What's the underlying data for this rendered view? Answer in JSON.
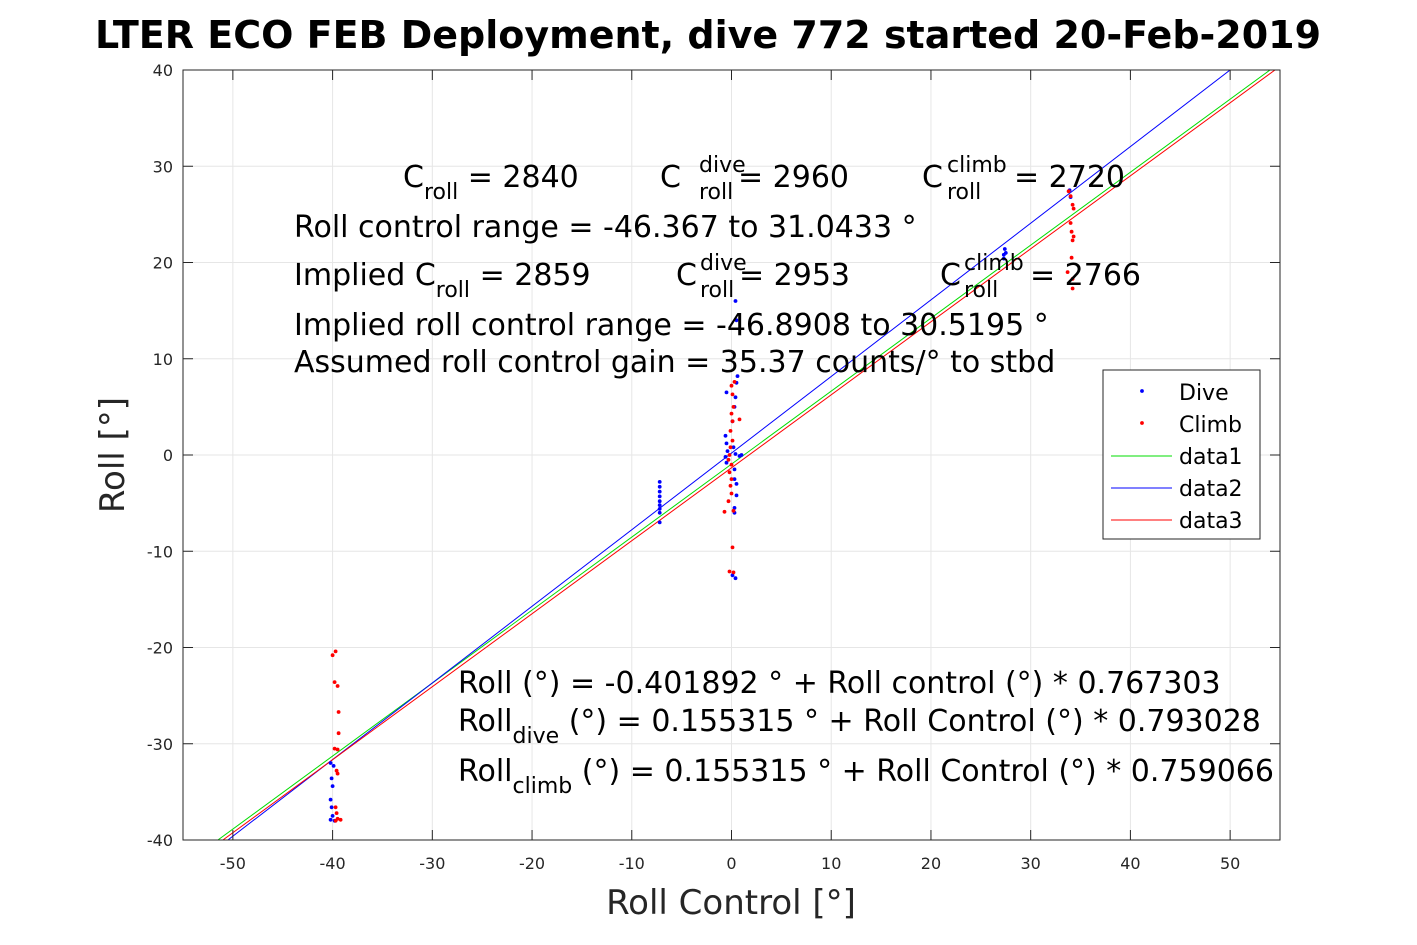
{
  "chart_data": {
    "type": "scatter",
    "title": "LTER ECO FEB Deployment, dive 772 started 20-Feb-2019",
    "xlabel": "Roll Control [°]",
    "ylabel": "Roll [°]",
    "xlim": [
      -55,
      55
    ],
    "ylim": [
      -40,
      40
    ],
    "xticks": [
      -50,
      -40,
      -30,
      -20,
      -10,
      0,
      10,
      20,
      30,
      40,
      50
    ],
    "yticks": [
      -40,
      -30,
      -20,
      -10,
      0,
      10,
      20,
      30,
      40
    ],
    "grid": true,
    "legend_placement": "east",
    "series": [
      {
        "name": "Dive",
        "kind": "points",
        "color": "#0000ff",
        "points": [
          [
            -40.2,
            -32.0
          ],
          [
            -40.1,
            -33.6
          ],
          [
            -40.0,
            -34.4
          ],
          [
            -40.2,
            -35.8
          ],
          [
            -40.1,
            -36.6
          ],
          [
            -40.0,
            -37.5
          ],
          [
            -40.2,
            -37.9
          ],
          [
            -39.8,
            -38.0
          ],
          [
            -39.9,
            -32.3
          ],
          [
            -7.2,
            -2.8
          ],
          [
            -7.2,
            -3.3
          ],
          [
            -7.2,
            -3.8
          ],
          [
            -7.2,
            -4.3
          ],
          [
            -7.2,
            -4.8
          ],
          [
            -7.2,
            -5.2
          ],
          [
            -7.2,
            -5.6
          ],
          [
            -7.2,
            -6.0
          ],
          [
            -7.2,
            -7.0
          ],
          [
            0.4,
            16.0
          ],
          [
            0.5,
            14.0
          ],
          [
            0.6,
            8.2
          ],
          [
            0.5,
            7.5
          ],
          [
            0.4,
            6.0
          ],
          [
            0.3,
            5.0
          ],
          [
            0.1,
            3.5
          ],
          [
            -0.5,
            6.5
          ],
          [
            -0.6,
            2.0
          ],
          [
            -0.5,
            1.2
          ],
          [
            -0.4,
            0.4
          ],
          [
            -0.6,
            -0.2
          ],
          [
            -0.5,
            -0.8
          ],
          [
            0.2,
            0.8
          ],
          [
            0.4,
            0.1
          ],
          [
            0.8,
            -0.1
          ],
          [
            1.0,
            0.0
          ],
          [
            0.3,
            -1.5
          ],
          [
            0.3,
            -2.5
          ],
          [
            0.5,
            -3.0
          ],
          [
            0.5,
            -4.2
          ],
          [
            0.3,
            -5.5
          ],
          [
            0.3,
            -6.0
          ],
          [
            0.4,
            -12.8
          ],
          [
            0.1,
            -12.5
          ],
          [
            27.3,
            20.4
          ],
          [
            27.5,
            21.0
          ],
          [
            27.4,
            21.4
          ],
          [
            27.3,
            20.8
          ],
          [
            33.9,
            27.5
          ],
          [
            34.0,
            26.8
          ]
        ]
      },
      {
        "name": "Climb",
        "kind": "points",
        "color": "#ff0000",
        "points": [
          [
            -39.7,
            -20.4
          ],
          [
            -40.0,
            -20.8
          ],
          [
            -39.8,
            -23.6
          ],
          [
            -39.5,
            -24.0
          ],
          [
            -39.4,
            -26.7
          ],
          [
            -39.4,
            -28.9
          ],
          [
            -39.8,
            -30.5
          ],
          [
            -39.5,
            -30.6
          ],
          [
            -39.6,
            -32.8
          ],
          [
            -39.5,
            -33.1
          ],
          [
            -39.7,
            -36.6
          ],
          [
            -39.6,
            -37.2
          ],
          [
            -39.5,
            -37.8
          ],
          [
            -39.2,
            -37.9
          ],
          [
            -39.7,
            -38.0
          ],
          [
            0.0,
            7.2
          ],
          [
            0.3,
            7.6
          ],
          [
            0.1,
            6.3
          ],
          [
            0.2,
            5.0
          ],
          [
            0.0,
            4.3
          ],
          [
            0.1,
            3.5
          ],
          [
            0.8,
            3.7
          ],
          [
            -0.1,
            2.5
          ],
          [
            0.1,
            1.5
          ],
          [
            -0.1,
            0.8
          ],
          [
            -0.2,
            0.0
          ],
          [
            -0.3,
            -0.5
          ],
          [
            0.0,
            -1.0
          ],
          [
            -0.2,
            -1.8
          ],
          [
            0.0,
            -2.5
          ],
          [
            -0.1,
            -3.2
          ],
          [
            0.0,
            -4.0
          ],
          [
            -0.3,
            -4.8
          ],
          [
            -0.7,
            -5.9
          ],
          [
            0.2,
            -5.8
          ],
          [
            0.1,
            -9.6
          ],
          [
            -0.2,
            -12.1
          ],
          [
            0.2,
            -12.2
          ],
          [
            33.8,
            27.4
          ],
          [
            34.0,
            26.9
          ],
          [
            34.2,
            26.0
          ],
          [
            34.3,
            25.6
          ],
          [
            34.0,
            24.1
          ],
          [
            34.1,
            23.2
          ],
          [
            34.3,
            22.7
          ],
          [
            34.2,
            22.3
          ],
          [
            34.1,
            20.5
          ],
          [
            33.7,
            19.0
          ],
          [
            34.2,
            18.3
          ],
          [
            34.2,
            17.3
          ]
        ]
      },
      {
        "name": "data1",
        "kind": "line",
        "color": "#00dd00",
        "x": [
          -51.5,
          54.0
        ],
        "y": [
          -40.0,
          40.0
        ]
      },
      {
        "name": "data2",
        "kind": "line",
        "color": "#0000ff",
        "x": [
          -50.5,
          50.0
        ],
        "y": [
          -40.0,
          40.0
        ]
      },
      {
        "name": "data3",
        "kind": "line",
        "color": "#ff0000",
        "x": [
          -51.0,
          54.5
        ],
        "y": [
          -40.0,
          40.0
        ]
      }
    ]
  },
  "text": {
    "title": "LTER ECO FEB Deployment, dive 772 started 20-Feb-2019",
    "ylabel": "Roll [°]",
    "xlabel": "Roll Control [°]",
    "c_roll_base": "C",
    "c_roll_sub": "roll",
    "c_roll_value": " = 2840",
    "c_dive_sup": "dive",
    "c_dive_value": " = 2960",
    "c_climb_sup": "climb",
    "c_climb_value": " = 2720",
    "roll_control_range": "Roll control range = -46.367 to 31.0433 °",
    "implied_prefix": "Implied C",
    "implied_value": " = 2859",
    "implied_dive_value": " = 2953",
    "implied_climb_value": " = 2766",
    "implied_range": "Implied roll control range = -46.8908 to 30.5195 °",
    "gain": "Assumed roll control gain = 35.37 counts/° to stbd",
    "fit1": "Roll (°) = -0.401892 ° + Roll control (°) * 0.767303",
    "fit2_base": "Roll",
    "fit2_sub": "dive",
    "fit2_rest": " (°) = 0.155315 ° + Roll Control (°) * 0.793028",
    "fit3_base": "Roll",
    "fit3_sub": "climb",
    "fit3_rest": " (°) = 0.155315 ° + Roll Control (°) * 0.759066"
  }
}
